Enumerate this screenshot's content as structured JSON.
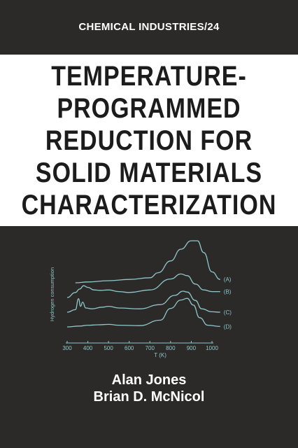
{
  "cover": {
    "series": "CHEMICAL INDUSTRIES/24",
    "title_lines": [
      "TEMPERATURE-",
      "PROGRAMMED",
      "REDUCTION FOR",
      "SOLID MATERIALS",
      "CHARACTERIZATION"
    ],
    "authors": [
      "Alan Jones",
      "Brian D. McNicol"
    ],
    "colors": {
      "background": "#2b2a29",
      "band": "#ffffff",
      "title": "#1c1c1c",
      "curve": "#8fc7c9"
    }
  },
  "chart_data": {
    "type": "line",
    "ylabel": "Hydrogen consumption",
    "xlabel": "T (K)",
    "xlim": [
      300,
      1000
    ],
    "x_ticks": [
      "300",
      "400",
      "500",
      "600",
      "700",
      "800",
      "900",
      "1000"
    ],
    "grid": false,
    "series": [
      {
        "name": "(A)",
        "offset": 3,
        "x": [
          340,
          400,
          500,
          600,
          700,
          740,
          800,
          850,
          900,
          930,
          960,
          1000,
          1040
        ],
        "y": [
          0.0,
          0.1,
          0.25,
          0.4,
          0.6,
          1.2,
          2.6,
          4.0,
          5.0,
          5.0,
          3.6,
          1.3,
          0.4
        ]
      },
      {
        "name": "(B)",
        "offset": 2,
        "x": [
          300,
          340,
          360,
          380,
          400,
          430,
          460,
          500,
          550,
          600,
          700,
          800,
          850,
          880,
          920,
          960,
          1000,
          1040
        ],
        "y": [
          0.0,
          0.6,
          1.0,
          1.4,
          1.2,
          0.9,
          0.85,
          0.9,
          0.7,
          0.6,
          0.9,
          2.2,
          2.8,
          2.6,
          1.6,
          0.9,
          0.7,
          0.7
        ]
      },
      {
        "name": "(C)",
        "offset": 1,
        "x": [
          300,
          340,
          355,
          365,
          375,
          390,
          420,
          470,
          500,
          550,
          650,
          750,
          820,
          860,
          880,
          920,
          950,
          1000,
          1040
        ],
        "y": [
          0.0,
          0.3,
          1.6,
          0.7,
          1.2,
          0.5,
          0.4,
          0.6,
          0.7,
          0.5,
          0.4,
          0.9,
          2.0,
          2.5,
          2.4,
          1.4,
          0.4,
          0.05,
          0.0
        ]
      },
      {
        "name": "(D)",
        "offset": 0,
        "x": [
          300,
          360,
          400,
          450,
          500,
          550,
          650,
          750,
          800,
          850,
          880,
          910,
          940,
          980,
          1040
        ],
        "y": [
          0.0,
          0.1,
          0.2,
          0.25,
          0.3,
          0.2,
          0.15,
          0.8,
          2.2,
          3.2,
          3.4,
          2.6,
          1.1,
          0.2,
          0.05
        ]
      }
    ]
  }
}
